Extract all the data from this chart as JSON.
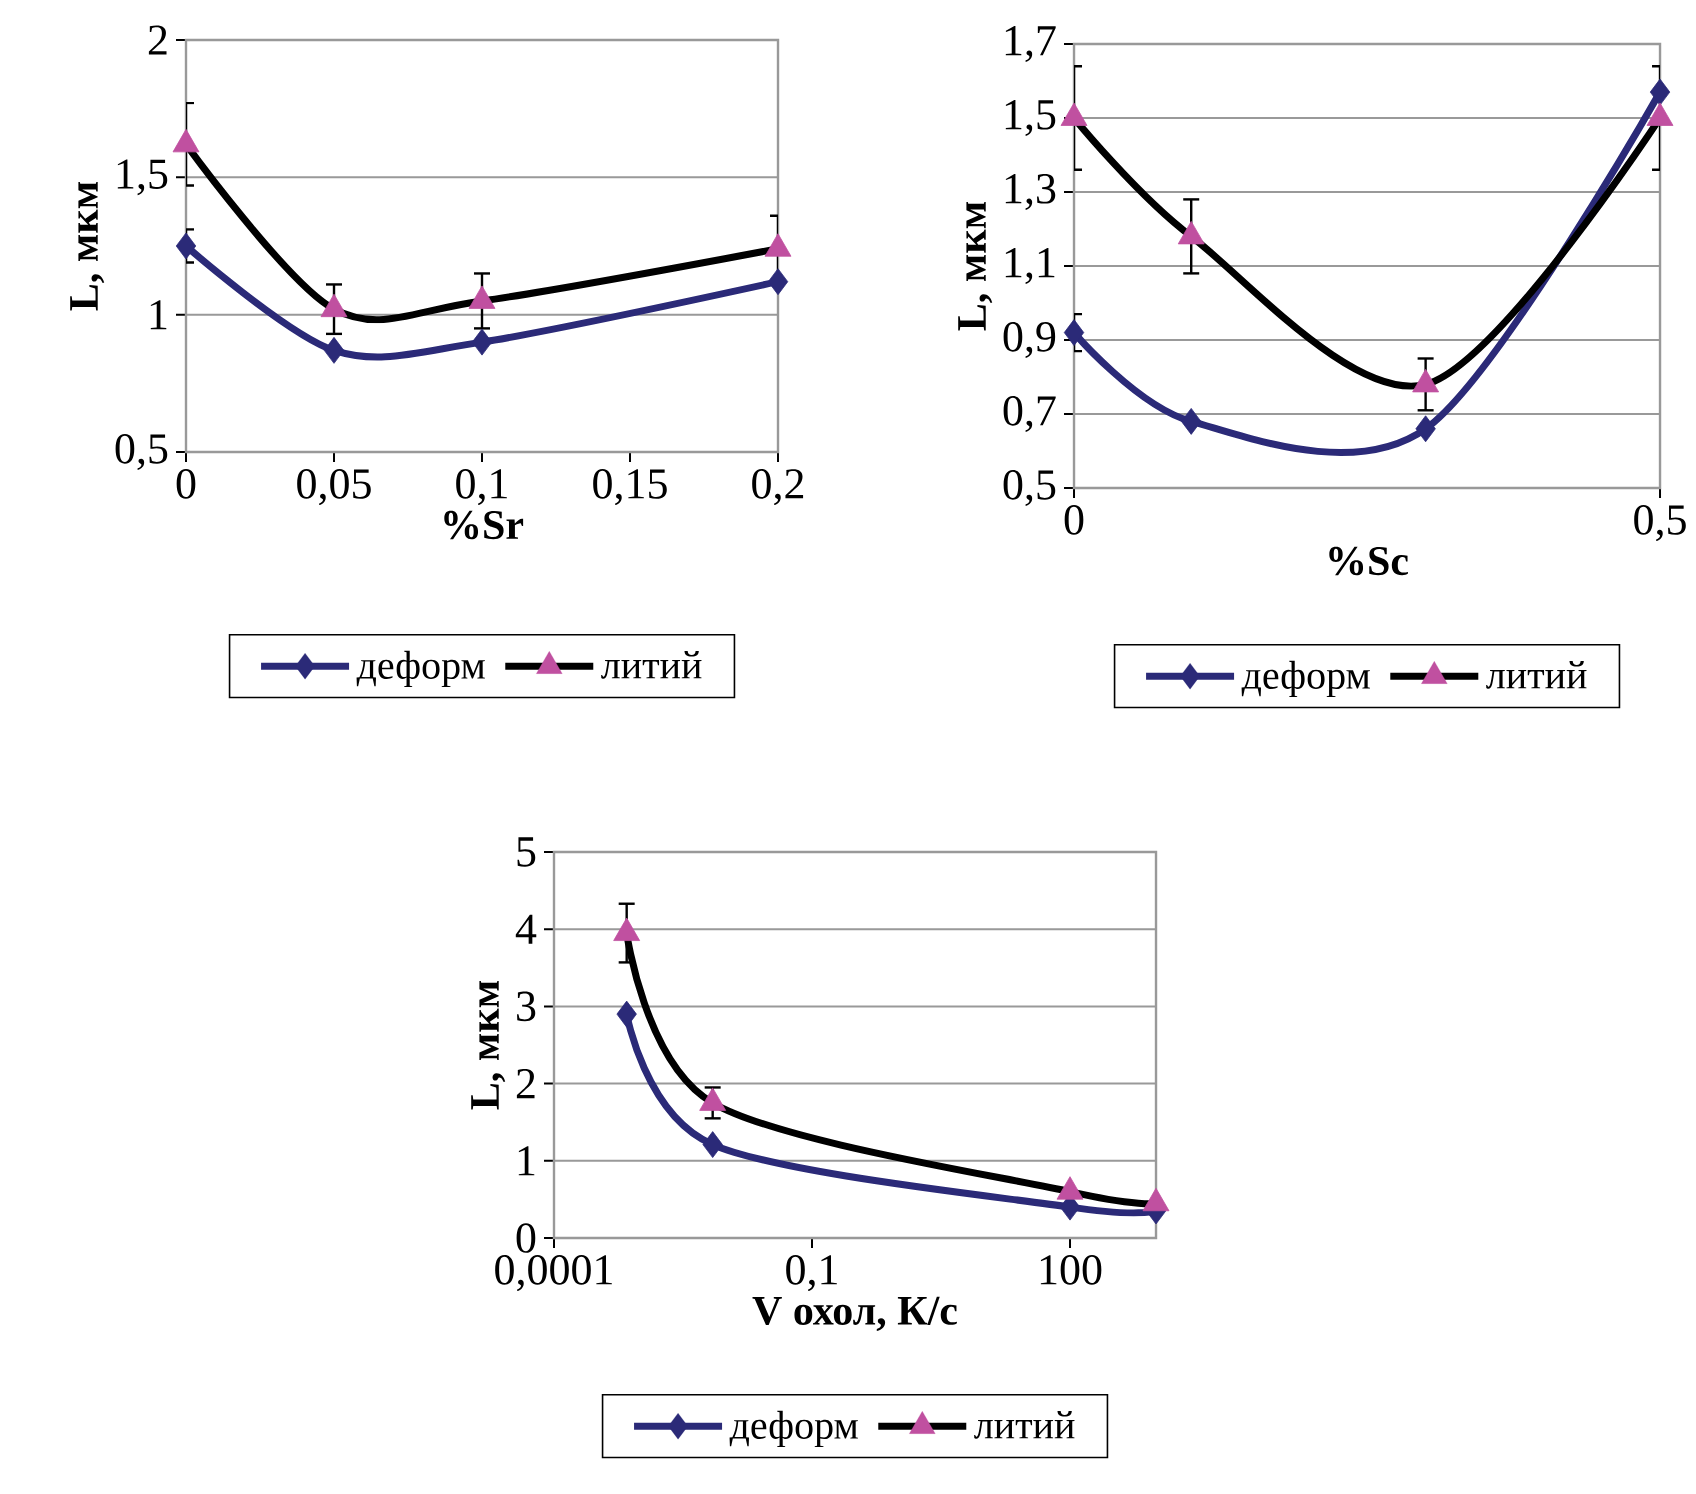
{
  "chart_data": [
    {
      "type": "line",
      "xlabel": "%Sr",
      "ylabel": "L, мкм",
      "x": [
        0,
        0.05,
        0.1,
        0.2
      ],
      "xlim": [
        0,
        0.2
      ],
      "xticks": [
        0,
        {
          "value": 0.05,
          "label": "0,05"
        },
        {
          "value": 0.1,
          "label": "0,1"
        },
        {
          "value": 0.15,
          "label": "0,15"
        },
        {
          "value": 0.2,
          "label": "0,2"
        }
      ],
      "ylim": [
        0.5,
        2
      ],
      "yticks": [
        {
          "value": 0.5,
          "label": "0,5"
        },
        1,
        {
          "value": 1.5,
          "label": "1,5"
        },
        2
      ],
      "grid": "y",
      "legend": "bottom",
      "series": [
        {
          "name": "деформ",
          "color": "#2b2a78",
          "colors": [
            "#2b2a78",
            "#2b2a78",
            "#2b2a78",
            "#2b2a78"
          ],
          "marker": "diamond",
          "values": [
            1.25,
            0.87,
            0.9,
            1.12
          ],
          "errors": [
            0.06,
            null,
            null,
            null
          ]
        },
        {
          "name": "литий",
          "color": "#000000",
          "colors": [
            "#c050a0",
            "#c050a0",
            "#c050a0",
            "#c050a0"
          ],
          "marker": "triangle",
          "values": [
            1.62,
            1.02,
            1.05,
            1.24
          ],
          "errors": [
            0.15,
            0.09,
            0.1,
            0.12
          ]
        }
      ]
    },
    {
      "type": "line",
      "xlabel": "%Sc",
      "ylabel": "L, мкм",
      "x": [
        0,
        0.1,
        0.3,
        0.5
      ],
      "xlim": [
        0,
        0.5
      ],
      "xticks": [
        0,
        {
          "value": 0.5,
          "label": "0,5"
        }
      ],
      "ylim": [
        0.5,
        1.7
      ],
      "yticks": [
        {
          "value": 0.5,
          "label": "0,5"
        },
        {
          "value": 0.7,
          "label": "0,7"
        },
        {
          "value": 0.9,
          "label": "0,9"
        },
        {
          "value": 1.1,
          "label": "1,1"
        },
        {
          "value": 1.3,
          "label": "1,3"
        },
        {
          "value": 1.5,
          "label": "1,5"
        },
        {
          "value": 1.7,
          "label": "1,7"
        }
      ],
      "grid": "y",
      "legend": "bottom",
      "series": [
        {
          "name": "деформ",
          "color": "#2b2a78",
          "colors": [
            "#2b2a78",
            "#2b2a78",
            "#2b2a78",
            "#2b2a78"
          ],
          "marker": "diamond",
          "values": [
            0.92,
            0.68,
            0.66,
            1.57
          ],
          "errors": [
            0.05,
            null,
            null,
            null
          ]
        },
        {
          "name": "литий",
          "color": "#000000",
          "colors": [
            "#c050a0",
            "#c050a0",
            "#c050a0",
            "#c050a0"
          ],
          "marker": "triangle",
          "values": [
            1.5,
            1.18,
            0.78,
            1.5
          ],
          "errors": [
            0.14,
            0.1,
            0.07,
            0.14
          ]
        }
      ]
    },
    {
      "type": "line",
      "xlabel": "V охол, К/с",
      "ylabel": "L, мкм",
      "log": "x",
      "x": [
        0.0007,
        0.007,
        100,
        1000
      ],
      "xlim": [
        0.0001,
        1000
      ],
      "xticks": [
        {
          "value": 0.0001,
          "label": "0,0001"
        },
        {
          "value": 0.1,
          "label": "0,1"
        },
        100
      ],
      "ylim": [
        0,
        5
      ],
      "yticks": [
        0,
        1,
        2,
        3,
        4,
        5
      ],
      "grid": "y",
      "legend": "bottom",
      "series": [
        {
          "name": "деформ",
          "color": "#2b2a78",
          "colors": [
            "#2b2a78",
            "#2b2a78",
            "#2b2a78",
            "#2b2a78"
          ],
          "marker": "diamond",
          "values": [
            2.9,
            1.21,
            0.4,
            0.35
          ],
          "errors": [
            null,
            null,
            null,
            null
          ]
        },
        {
          "name": "литий",
          "color": "#000000",
          "colors": [
            "#c050a0",
            "#c050a0",
            "#c050a0",
            "#c050a0"
          ],
          "marker": "triangle",
          "values": [
            3.95,
            1.75,
            0.6,
            0.45
          ],
          "errors": [
            0.38,
            0.2,
            null,
            null
          ]
        }
      ]
    }
  ]
}
